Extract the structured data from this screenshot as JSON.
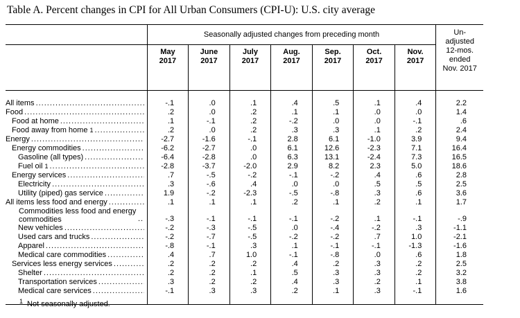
{
  "title": "Table A. Percent changes in CPI for All Urban Consumers (CPI-U): U.S. city average",
  "header": {
    "group_label": "Seasonally adjusted changes from preceding month",
    "unadjusted_lines": [
      "Un-",
      "adjusted",
      "12-mos.",
      "ended",
      "Nov. 2017"
    ],
    "months": [
      {
        "m": "May",
        "y": "2017"
      },
      {
        "m": "June",
        "y": "2017"
      },
      {
        "m": "July",
        "y": "2017"
      },
      {
        "m": "Aug.",
        "y": "2017"
      },
      {
        "m": "Sep.",
        "y": "2017"
      },
      {
        "m": "Oct.",
        "y": "2017"
      },
      {
        "m": "Nov.",
        "y": "2017"
      }
    ]
  },
  "rows": [
    {
      "label": "All items",
      "indent": 0,
      "values": [
        "-.1",
        ".0",
        ".1",
        ".4",
        ".5",
        ".1",
        ".4"
      ],
      "annual": "2.2"
    },
    {
      "label": "Food",
      "indent": 0,
      "values": [
        ".2",
        ".0",
        ".2",
        ".1",
        ".1",
        ".0",
        ".0"
      ],
      "annual": "1.4"
    },
    {
      "label": "Food at home",
      "indent": 1,
      "values": [
        ".1",
        "-.1",
        ".2",
        "-.2",
        ".0",
        ".0",
        "-.1"
      ],
      "annual": ".6"
    },
    {
      "label": "Food away from home",
      "indent": 1,
      "footnote": "1",
      "values": [
        ".2",
        ".0",
        ".2",
        ".3",
        ".3",
        ".1",
        ".2"
      ],
      "annual": "2.4"
    },
    {
      "label": "Energy",
      "indent": 0,
      "values": [
        "-2.7",
        "-1.6",
        "-.1",
        "2.8",
        "6.1",
        "-1.0",
        "3.9"
      ],
      "annual": "9.4"
    },
    {
      "label": "Energy commodities",
      "indent": 1,
      "values": [
        "-6.2",
        "-2.7",
        ".0",
        "6.1",
        "12.6",
        "-2.3",
        "7.1"
      ],
      "annual": "16.4"
    },
    {
      "label": "Gasoline (all types)",
      "indent": 2,
      "values": [
        "-6.4",
        "-2.8",
        ".0",
        "6.3",
        "13.1",
        "-2.4",
        "7.3"
      ],
      "annual": "16.5"
    },
    {
      "label": "Fuel oil",
      "indent": 2,
      "footnote": "1",
      "values": [
        "-2.8",
        "-3.7",
        "-2.0",
        "2.9",
        "8.2",
        "2.3",
        "5.0"
      ],
      "annual": "18.6"
    },
    {
      "label": "Energy services",
      "indent": 1,
      "values": [
        ".7",
        "-.5",
        "-.2",
        "-.1",
        "-.2",
        ".4",
        ".6"
      ],
      "annual": "2.8"
    },
    {
      "label": "Electricity",
      "indent": 2,
      "values": [
        ".3",
        "-.6",
        ".4",
        ".0",
        ".0",
        ".5",
        ".5"
      ],
      "annual": "2.5"
    },
    {
      "label": "Utility (piped) gas service",
      "indent": 2,
      "values": [
        "1.9",
        "-.2",
        "-2.3",
        "-.5",
        "-.8",
        ".3",
        ".6"
      ],
      "annual": "3.6"
    },
    {
      "label": "All items less food and energy",
      "indent": 0,
      "values": [
        ".1",
        ".1",
        ".1",
        ".2",
        ".1",
        ".2",
        ".1"
      ],
      "annual": "1.7"
    },
    {
      "label": "Commodities less food and energy commodities",
      "indent": 1,
      "wrap": true,
      "values": [
        "-.3",
        "-.1",
        "-.1",
        "-.1",
        "-.2",
        ".1",
        "-.1"
      ],
      "annual": "-.9"
    },
    {
      "label": "New vehicles",
      "indent": 2,
      "values": [
        "-.2",
        "-.3",
        "-.5",
        ".0",
        "-.4",
        "-.2",
        ".3"
      ],
      "annual": "-1.1"
    },
    {
      "label": "Used cars and trucks",
      "indent": 2,
      "values": [
        "-.2",
        "-.7",
        "-.5",
        "-.2",
        "-.2",
        ".7",
        "1.0"
      ],
      "annual": "-2.1"
    },
    {
      "label": "Apparel",
      "indent": 2,
      "values": [
        "-.8",
        "-.1",
        ".3",
        ".1",
        "-.1",
        "-.1",
        "-1.3"
      ],
      "annual": "-1.6"
    },
    {
      "label": "Medical care commodities",
      "indent": 2,
      "values": [
        ".4",
        ".7",
        "1.0",
        "-.1",
        "-.8",
        ".0",
        ".6"
      ],
      "annual": "1.8"
    },
    {
      "label": "Services less energy services",
      "indent": 1,
      "values": [
        ".2",
        ".2",
        ".2",
        ".4",
        ".2",
        ".3",
        ".2"
      ],
      "annual": "2.5"
    },
    {
      "label": "Shelter",
      "indent": 2,
      "values": [
        ".2",
        ".2",
        ".1",
        ".5",
        ".3",
        ".3",
        ".2"
      ],
      "annual": "3.2"
    },
    {
      "label": "Transportation services",
      "indent": 2,
      "values": [
        ".3",
        ".2",
        ".2",
        ".4",
        ".3",
        ".2",
        ".1"
      ],
      "annual": "3.8"
    },
    {
      "label": "Medical care services",
      "indent": 2,
      "values": [
        "-.1",
        ".3",
        ".3",
        ".2",
        ".1",
        ".3",
        "-.1"
      ],
      "annual": "1.6"
    }
  ],
  "footnote": {
    "marker": "1",
    "text": "Not seasonally adjusted."
  }
}
